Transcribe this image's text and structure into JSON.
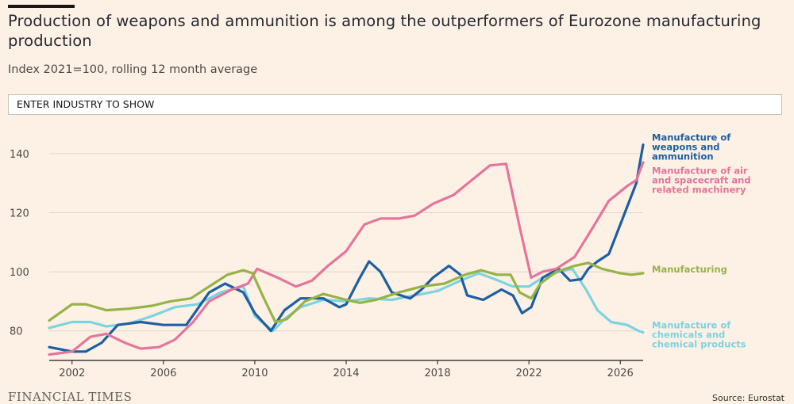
{
  "header": {
    "title": "Production of weapons and ammunition is among the outperformers of Eurozone manufacturing production",
    "subtitle": "Index 2021=100, rolling 12 month average"
  },
  "search": {
    "placeholder": "ENTER INDUSTRY TO SHOW"
  },
  "footer": {
    "logo": "FINANCIAL TIMES",
    "source": "Source: Eurostat"
  },
  "chart_data": {
    "type": "line",
    "title": "Production of weapons and ammunition is among the outperformers of Eurozone manufacturing production",
    "subtitle": "Index 2021=100, rolling 12 month average",
    "xlabel": "",
    "ylabel": "",
    "xlim": [
      2001,
      2027
    ],
    "ylim": [
      70,
      148
    ],
    "x_ticks": [
      2002,
      2006,
      2010,
      2014,
      2018,
      2022,
      2026
    ],
    "y_ticks": [
      80,
      100,
      120,
      140
    ],
    "grid": "horizontal",
    "series": [
      {
        "name": "Manufacture of chemicals and chemical products",
        "label_lines": [
          "Manufacture of",
          "chemicals and",
          "chemical products"
        ],
        "color": "#7dd3e0",
        "points": [
          [
            2001,
            81
          ],
          [
            2002,
            83
          ],
          [
            2002.8,
            83
          ],
          [
            2003.5,
            81.5
          ],
          [
            2004.5,
            82.5
          ],
          [
            2005.5,
            85
          ],
          [
            2006.5,
            88
          ],
          [
            2007.5,
            89
          ],
          [
            2008.5,
            93
          ],
          [
            2009.5,
            95
          ],
          [
            2010,
            85
          ],
          [
            2010.8,
            80
          ],
          [
            2011.3,
            84
          ],
          [
            2012,
            88
          ],
          [
            2013,
            90.5
          ],
          [
            2014,
            90
          ],
          [
            2015,
            91
          ],
          [
            2016,
            90.5
          ],
          [
            2017,
            92
          ],
          [
            2018,
            93.5
          ],
          [
            2019,
            97
          ],
          [
            2019.8,
            99.5
          ],
          [
            2020.5,
            97.5
          ],
          [
            2021.3,
            95
          ],
          [
            2022,
            95
          ],
          [
            2022.6,
            98
          ],
          [
            2023.3,
            100
          ],
          [
            2023.9,
            101
          ],
          [
            2024.5,
            94
          ],
          [
            2025,
            87
          ],
          [
            2025.6,
            83
          ],
          [
            2026.3,
            82
          ],
          [
            2026.8,
            80
          ],
          [
            2027,
            79.5
          ]
        ]
      },
      {
        "name": "Manufacture of weapons and ammunition",
        "label_lines": [
          "Manufacture of",
          "weapons and",
          "ammunition"
        ],
        "color": "#1e5fa1",
        "points": [
          [
            2001,
            74.5
          ],
          [
            2002,
            73
          ],
          [
            2002.6,
            73
          ],
          [
            2003.3,
            76
          ],
          [
            2004,
            82
          ],
          [
            2005,
            83
          ],
          [
            2006,
            82
          ],
          [
            2007,
            82
          ],
          [
            2008,
            93
          ],
          [
            2008.7,
            96
          ],
          [
            2009.5,
            93
          ],
          [
            2010,
            86
          ],
          [
            2010.7,
            80
          ],
          [
            2011.3,
            87
          ],
          [
            2012,
            91
          ],
          [
            2013,
            91
          ],
          [
            2013.7,
            88
          ],
          [
            2014,
            89
          ],
          [
            2014.6,
            98
          ],
          [
            2015,
            103.5
          ],
          [
            2015.5,
            100
          ],
          [
            2016,
            93
          ],
          [
            2016.8,
            91
          ],
          [
            2017.3,
            94
          ],
          [
            2017.8,
            98
          ],
          [
            2018.5,
            102
          ],
          [
            2019,
            99
          ],
          [
            2019.3,
            92
          ],
          [
            2020,
            90.5
          ],
          [
            2020.8,
            94
          ],
          [
            2021.3,
            92
          ],
          [
            2021.7,
            86
          ],
          [
            2022.1,
            88
          ],
          [
            2022.6,
            98
          ],
          [
            2023.3,
            101
          ],
          [
            2023.8,
            97
          ],
          [
            2024.3,
            97.5
          ],
          [
            2024.6,
            101
          ],
          [
            2025,
            103.5
          ],
          [
            2025.5,
            106
          ],
          [
            2025.8,
            112
          ],
          [
            2026.2,
            120
          ],
          [
            2026.7,
            130
          ],
          [
            2027,
            143
          ]
        ]
      },
      {
        "name": "Manufacture of air and spacecraft and related machinery",
        "label_lines": [
          "Manufacture of air",
          "and spacecraft and",
          "related machinery"
        ],
        "color": "#e5759a",
        "points": [
          [
            2001,
            72
          ],
          [
            2002,
            73
          ],
          [
            2002.8,
            78
          ],
          [
            2003.5,
            79
          ],
          [
            2004.3,
            76
          ],
          [
            2005,
            74
          ],
          [
            2005.8,
            74.5
          ],
          [
            2006.5,
            77
          ],
          [
            2007.3,
            83
          ],
          [
            2008,
            90
          ],
          [
            2009,
            94
          ],
          [
            2009.7,
            96
          ],
          [
            2010.1,
            101
          ],
          [
            2011,
            98
          ],
          [
            2011.8,
            95
          ],
          [
            2012.5,
            97
          ],
          [
            2013.2,
            102
          ],
          [
            2014,
            107
          ],
          [
            2014.8,
            116
          ],
          [
            2015.5,
            118
          ],
          [
            2016.3,
            118
          ],
          [
            2017,
            119
          ],
          [
            2017.8,
            123
          ],
          [
            2018.7,
            126
          ],
          [
            2019.5,
            131
          ],
          [
            2020.3,
            136
          ],
          [
            2021,
            136.5
          ],
          [
            2021.6,
            115
          ],
          [
            2022.1,
            98
          ],
          [
            2022.6,
            100
          ],
          [
            2023.2,
            101
          ],
          [
            2024,
            105
          ],
          [
            2024.8,
            115
          ],
          [
            2025.5,
            124
          ],
          [
            2026.3,
            129
          ],
          [
            2026.7,
            131
          ],
          [
            2027,
            137
          ]
        ]
      },
      {
        "name": "Manufacturing",
        "label_lines": [
          "Manufacturing"
        ],
        "color": "#96b346",
        "points": [
          [
            2001,
            83.5
          ],
          [
            2002,
            89
          ],
          [
            2002.6,
            89
          ],
          [
            2003.5,
            87
          ],
          [
            2004.5,
            87.5
          ],
          [
            2005.5,
            88.5
          ],
          [
            2006.3,
            90
          ],
          [
            2007.2,
            91
          ],
          [
            2008,
            95
          ],
          [
            2008.8,
            99
          ],
          [
            2009.5,
            100.5
          ],
          [
            2009.9,
            99.5
          ],
          [
            2010.4,
            91
          ],
          [
            2010.9,
            83
          ],
          [
            2011.4,
            84
          ],
          [
            2012.2,
            90
          ],
          [
            2013,
            92.5
          ],
          [
            2014,
            90.5
          ],
          [
            2014.6,
            89.5
          ],
          [
            2015.3,
            90.5
          ],
          [
            2016.3,
            93
          ],
          [
            2017.3,
            95
          ],
          [
            2018.3,
            96
          ],
          [
            2019.2,
            99
          ],
          [
            2019.9,
            100.5
          ],
          [
            2020.6,
            99
          ],
          [
            2021.2,
            99
          ],
          [
            2021.6,
            93
          ],
          [
            2022.1,
            91
          ],
          [
            2022.5,
            96
          ],
          [
            2023.2,
            100
          ],
          [
            2024,
            102
          ],
          [
            2024.6,
            103
          ],
          [
            2025.2,
            101
          ],
          [
            2026,
            99.5
          ],
          [
            2026.5,
            99
          ],
          [
            2027,
            99.5
          ]
        ]
      }
    ]
  }
}
